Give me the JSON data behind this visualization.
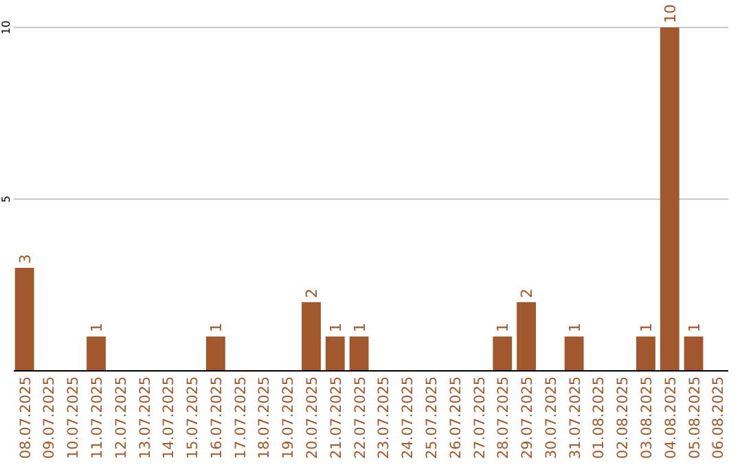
{
  "chart_data": {
    "type": "bar",
    "categories": [
      "08.07.2025",
      "09.07.2025",
      "10.07.2025",
      "11.07.2025",
      "12.07.2025",
      "13.07.2025",
      "14.07.2025",
      "15.07.2025",
      "16.07.2025",
      "17.07.2025",
      "18.07.2025",
      "19.07.2025",
      "20.07.2025",
      "21.07.2025",
      "22.07.2025",
      "23.07.2025",
      "24.07.2025",
      "25.07.2025",
      "26.07.2025",
      "27.07.2025",
      "28.07.2025",
      "29.07.2025",
      "30.07.2025",
      "31.07.2025",
      "01.08.2025",
      "02.08.2025",
      "03.08.2025",
      "04.08.2025",
      "05.08.2025",
      "06.08.2025"
    ],
    "values": [
      3,
      0,
      0,
      1,
      0,
      0,
      0,
      0,
      1,
      0,
      0,
      0,
      2,
      1,
      1,
      0,
      0,
      0,
      0,
      0,
      1,
      2,
      0,
      1,
      0,
      0,
      1,
      10,
      1,
      0
    ],
    "value_labels": [
      "3",
      null,
      null,
      "1",
      null,
      null,
      null,
      null,
      "1",
      null,
      null,
      null,
      "2",
      "1",
      "1",
      null,
      null,
      null,
      null,
      null,
      "1",
      "2",
      null,
      "1",
      null,
      null,
      "1",
      "10",
      "1",
      null
    ],
    "color": "#a0582c",
    "ylim": [
      0,
      10
    ],
    "yticks": [
      5,
      10
    ],
    "grid": "y"
  }
}
